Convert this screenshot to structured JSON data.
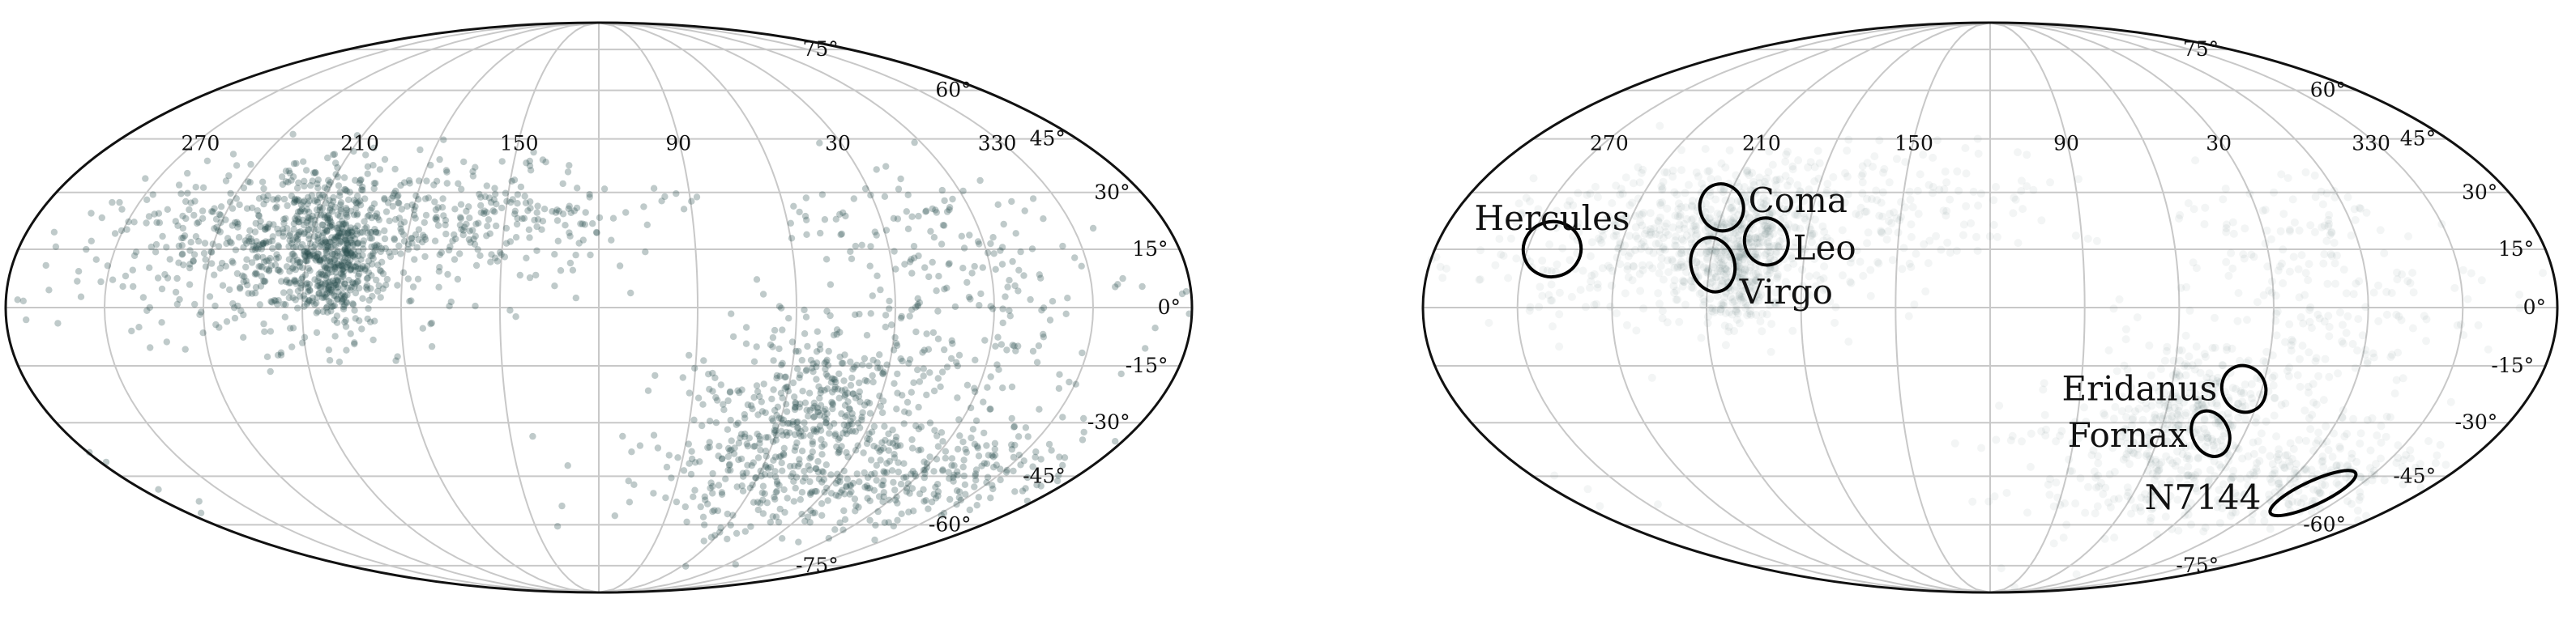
{
  "colors": {
    "point": "#2b4f4f",
    "grid": "#c8c8c8",
    "frame": "#111111",
    "region": "#000000"
  },
  "chart_data": [
    {
      "type": "scatter",
      "projection": "mollweide",
      "grid": true,
      "lon_ticks": [
        "270",
        "210",
        "150",
        "90",
        "30",
        "330"
      ],
      "lat_ticks": [
        "75°",
        "60°",
        "45°",
        "30°",
        "15°",
        "0°",
        "-15°",
        "-30°",
        "-45°",
        "-60°",
        "-75°"
      ],
      "point_alpha": 0.3,
      "series": [
        {
          "density_regions": [
            {
              "lon": 210,
              "lat": 15,
              "spread": [
                14,
                10
              ],
              "weight": 3.0
            },
            {
              "lon": 200,
              "lat": 10,
              "spread": [
                6,
                8
              ],
              "weight": 2.0
            },
            {
              "lon": 220,
              "lat": 25,
              "spread": [
                30,
                8
              ],
              "weight": 1.5
            },
            {
              "lon": 180,
              "lat": 20,
              "spread": [
                30,
                10
              ],
              "weight": 1.5
            },
            {
              "lon": 250,
              "lat": 10,
              "spread": [
                25,
                10
              ],
              "weight": 1.0
            },
            {
              "lon": 140,
              "lat": 25,
              "spread": [
                25,
                8
              ],
              "weight": 0.8
            },
            {
              "lon": 60,
              "lat": -35,
              "spread": [
                25,
                15
              ],
              "weight": 2.0
            },
            {
              "lon": 50,
              "lat": -25,
              "spread": [
                12,
                8
              ],
              "weight": 1.5
            },
            {
              "lon": 10,
              "lat": -5,
              "spread": [
                25,
                15
              ],
              "weight": 1.5
            },
            {
              "lon": 20,
              "lat": -45,
              "spread": [
                40,
                8
              ],
              "weight": 1.5
            },
            {
              "lon": 350,
              "lat": -45,
              "spread": [
                20,
                8
              ],
              "weight": 1.0
            },
            {
              "lon": 20,
              "lat": 20,
              "spread": [
                20,
                8
              ],
              "weight": 0.6
            }
          ]
        }
      ]
    },
    {
      "type": "scatter",
      "projection": "mollweide",
      "grid": true,
      "lon_ticks": [
        "270",
        "210",
        "150",
        "90",
        "30",
        "330"
      ],
      "lat_ticks": [
        "75°",
        "60°",
        "45°",
        "30°",
        "15°",
        "0°",
        "-15°",
        "-30°",
        "-45°",
        "-60°",
        "-75°"
      ],
      "point_alpha": 0.06,
      "regions": [
        {
          "label": "Hercules",
          "lon": 262,
          "lat": 15,
          "rx": 8,
          "ry": 7,
          "rot": -15
        },
        {
          "label": "Coma",
          "lon": 211,
          "lat": 26,
          "rx": 6,
          "ry": 6,
          "rot": -15
        },
        {
          "label": "Leo",
          "lon": 193,
          "lat": 17,
          "rx": 6,
          "ry": 6,
          "rot": -15
        },
        {
          "label": "Virgo",
          "lon": 209,
          "lat": 11,
          "rx": 6,
          "ry": 7,
          "rot": -15
        },
        {
          "label": "Eridanus",
          "lon": 36,
          "lat": -21,
          "rx": 6,
          "ry": 6,
          "rot": -25
        },
        {
          "label": "Fornax",
          "lon": 42,
          "lat": -33,
          "rx": 5,
          "ry": 6,
          "rot": -25
        },
        {
          "label": "N7144",
          "lon": 345,
          "lat": -50,
          "rx": 13,
          "ry": 3,
          "rot": -25
        }
      ]
    }
  ]
}
